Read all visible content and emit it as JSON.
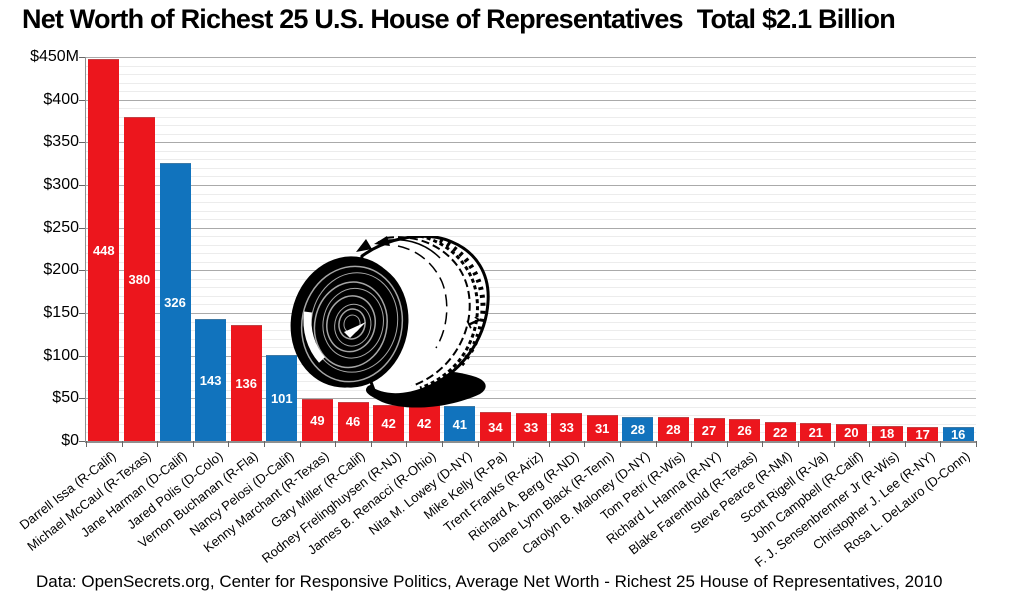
{
  "title": {
    "main": "Net Worth of Richest 25 U.S. House of Representatives",
    "total": "Total $2.1 Billion"
  },
  "caption": "Data: OpenSecrets.org, Center for Responsive Politics, Average Net Worth - Richest 25 House of Representatives, 2010",
  "colors": {
    "republican_bar": "#ec161d",
    "democrat_bar": "#1173bd",
    "bar_value_text": "#ffffff",
    "major_gridline": "#aaaaaa",
    "minor_gridline": "#ececec",
    "axis_line": "#8f8f8f",
    "tick": "#666666",
    "text": "#000000"
  },
  "illustration": {
    "name": "money-roll",
    "description": "Black-and-white drawing of a rolled wad of U.S. dollar bills overlaid on the middle of the chart"
  },
  "chart_data": {
    "type": "bar",
    "title": "Net Worth of Richest 25 U.S. House of Representatives  Total $2.1 Billion",
    "xlabel": "",
    "ylabel": "",
    "y_unit": "millions of dollars",
    "ylim": [
      0,
      450
    ],
    "y_major_unit": 50,
    "y_minor_unit": 10,
    "y_ticks": [
      "$450M",
      "$400",
      "$350",
      "$300",
      "$250",
      "$200",
      "$150",
      "$100",
      "$50",
      "$0"
    ],
    "grid": "horizontal",
    "legend": "none",
    "bar_color_rule": "red = Republican (R), blue = Democrat (D)",
    "categories": [
      "Darrell Issa (R-Calif)",
      "Michael McCaul (R-Texas)",
      "Jane Harman (D-Calif)",
      "Jared Polis (D-Colo)",
      "Vernon Buchanan (R-Fla)",
      "Nancy Pelosi (D-Calif)",
      "Kenny Marchant (R-Texas)",
      "Gary Miller (R-Calif)",
      "Rodney Frelinghuysen (R-NJ)",
      "James B. Renacci (R-Ohio)",
      "Nita M. Lowey (D-NY)",
      "Mike Kelly (R-Pa)",
      "Trent Franks (R-Ariz)",
      "Richard A. Berg (R-ND)",
      "Diane Lynn Black (R-Tenn)",
      "Carolyn B. Maloney (D-NY)",
      "Tom Petri (R-Wis)",
      "Richard L Hanna (R-NY)",
      "Blake Farenthold (R-Texas)",
      "Steve Pearce (R-NM)",
      "Scott Rigell (R-Va)",
      "John Campbell (R-Calif)",
      "F. J. Sensenbrenner Jr (R-Wis)",
      "Christopher J. Lee (R-NY)",
      "Rosa L. DeLauro (D-Conn)"
    ],
    "values": [
      448,
      380,
      326,
      143,
      136,
      101,
      49,
      46,
      42,
      42,
      41,
      34,
      33,
      33,
      31,
      28,
      28,
      27,
      26,
      22,
      21,
      20,
      18,
      17,
      16
    ],
    "parties": [
      "R",
      "R",
      "D",
      "D",
      "R",
      "D",
      "R",
      "R",
      "R",
      "R",
      "D",
      "R",
      "R",
      "R",
      "R",
      "D",
      "R",
      "R",
      "R",
      "R",
      "R",
      "R",
      "R",
      "R",
      "D"
    ]
  }
}
